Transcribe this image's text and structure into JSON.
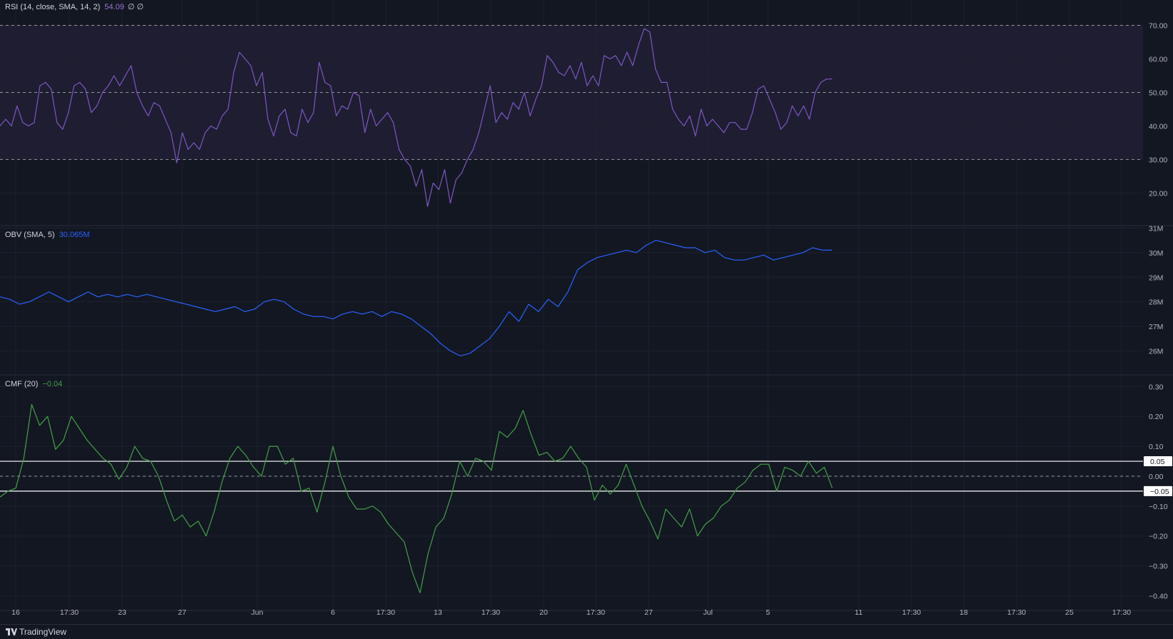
{
  "app": {
    "brand": "TradingView"
  },
  "colors": {
    "background": "#131722",
    "rsi": "#7e57c2",
    "rsi_band": "#7e57c2",
    "obv": "#2962ff",
    "cmf": "#43a047",
    "grid": "#1e222d",
    "text": "#b2b5be"
  },
  "x_axis": {
    "labels": [
      "16",
      "17:30",
      "23",
      "27",
      "Jun",
      "6",
      "17:30",
      "13",
      "17:30",
      "20",
      "17:30",
      "27",
      "Jul",
      "5",
      "11",
      "17:30",
      "18",
      "17:30",
      "25",
      "17:30"
    ]
  },
  "panes": {
    "rsi": {
      "title": "RSI (14, close, SMA, 14, 2)",
      "value": "54.09",
      "extra": "∅ ∅"
    },
    "obv": {
      "title": "OBV (SMA, 5)",
      "value": "30.065M"
    },
    "cmf": {
      "title": "CMF (20)",
      "value": "−0.04"
    }
  },
  "chart_data": [
    {
      "type": "line",
      "name": "RSI (14, close, SMA, 14, 2)",
      "ylim": [
        12,
        75
      ],
      "yticks": [
        "70.00",
        "60.00",
        "50.00",
        "40.00",
        "30.00",
        "20.00"
      ],
      "ytick_values": [
        70,
        60,
        50,
        40,
        30,
        20
      ],
      "levels": [
        70,
        50,
        30
      ],
      "band": [
        30,
        70
      ],
      "x_range": [
        0,
        185
      ],
      "series": [
        {
          "name": "RSI",
          "values": [
            40,
            42,
            40,
            46,
            41,
            40,
            41,
            52,
            53,
            51,
            41,
            39,
            44,
            52,
            53,
            51,
            44,
            46,
            50,
            52,
            55,
            52,
            55,
            58,
            50,
            46,
            43,
            47,
            46,
            42,
            38,
            29,
            38,
            33,
            35,
            33,
            38,
            40,
            39,
            43,
            45,
            56,
            62,
            60,
            58,
            52,
            56,
            42,
            37,
            43,
            45,
            38,
            37,
            45,
            41,
            44,
            59,
            53,
            52,
            43,
            46,
            45,
            50,
            49,
            38,
            45,
            40,
            42,
            44,
            41,
            33,
            30,
            28,
            22,
            27,
            16,
            23,
            21,
            27,
            17,
            24,
            26,
            30,
            33,
            38,
            45,
            52,
            41,
            44,
            42,
            47,
            45,
            50,
            43,
            48,
            52,
            61,
            59,
            56,
            55,
            58,
            54,
            59,
            52,
            55,
            52,
            61,
            60,
            61,
            58,
            62,
            58,
            64,
            69,
            68,
            57,
            53,
            53,
            45,
            42,
            40,
            43,
            37,
            45,
            40,
            42,
            40,
            38,
            41,
            41,
            39,
            39,
            44,
            51,
            52,
            48,
            44,
            39,
            41,
            46,
            43,
            46,
            42,
            50,
            53,
            54,
            54
          ]
        }
      ]
    },
    {
      "type": "line",
      "name": "OBV (SMA, 5)",
      "ylim": [
        25.2,
        31.1
      ],
      "yticks": [
        "31M",
        "30M",
        "29M",
        "28M",
        "27M",
        "26M"
      ],
      "ytick_values": [
        31,
        30,
        29,
        28,
        27,
        26
      ],
      "x_range": [
        0,
        185
      ],
      "series": [
        {
          "name": "OBV",
          "values": [
            28.2,
            28.1,
            27.9,
            28.0,
            28.2,
            28.4,
            28.2,
            28.0,
            28.2,
            28.4,
            28.2,
            28.3,
            28.2,
            28.3,
            28.2,
            28.3,
            28.2,
            28.1,
            28.0,
            27.9,
            27.8,
            27.7,
            27.6,
            27.7,
            27.8,
            27.6,
            27.7,
            28.0,
            28.1,
            28.0,
            27.7,
            27.5,
            27.4,
            27.4,
            27.3,
            27.5,
            27.6,
            27.5,
            27.6,
            27.4,
            27.6,
            27.5,
            27.3,
            27.0,
            26.7,
            26.3,
            26.0,
            25.8,
            25.9,
            26.2,
            26.5,
            27.0,
            27.6,
            27.2,
            27.9,
            27.6,
            28.1,
            27.8,
            28.4,
            29.3,
            29.6,
            29.8,
            29.9,
            30.0,
            30.1,
            30.0,
            30.3,
            30.5,
            30.4,
            30.3,
            30.2,
            30.2,
            30.0,
            30.1,
            29.8,
            29.7,
            29.7,
            29.8,
            29.9,
            29.7,
            29.8,
            29.9,
            30.0,
            30.2,
            30.1,
            30.1
          ]
        }
      ]
    },
    {
      "type": "line",
      "name": "CMF (20)",
      "ylim": [
        -0.43,
        0.32
      ],
      "yticks": [
        "0.30",
        "0.20",
        "0.10",
        "0.00",
        "−0.10",
        "−0.20",
        "−0.30",
        "−0.40"
      ],
      "ytick_values": [
        0.3,
        0.2,
        0.1,
        0.0,
        -0.1,
        -0.2,
        -0.3,
        -0.4
      ],
      "levels": [
        0.05,
        0.0,
        -0.05
      ],
      "level_tags": [
        "0.05",
        "−0.05"
      ],
      "x_range": [
        0,
        185
      ],
      "series": [
        {
          "name": "CMF",
          "values": [
            -0.07,
            -0.05,
            -0.04,
            0.06,
            0.24,
            0.17,
            0.2,
            0.09,
            0.12,
            0.2,
            0.16,
            0.12,
            0.09,
            0.06,
            0.04,
            -0.01,
            0.03,
            0.1,
            0.06,
            0.05,
            0.0,
            -0.08,
            -0.15,
            -0.13,
            -0.17,
            -0.15,
            -0.2,
            -0.12,
            -0.02,
            0.06,
            0.1,
            0.07,
            0.03,
            0.0,
            0.1,
            0.1,
            0.04,
            0.06,
            -0.05,
            -0.04,
            -0.12,
            -0.02,
            0.1,
            0.0,
            -0.07,
            -0.11,
            -0.11,
            -0.1,
            -0.12,
            -0.16,
            -0.19,
            -0.22,
            -0.32,
            -0.39,
            -0.26,
            -0.17,
            -0.14,
            -0.06,
            0.05,
            0.0,
            0.06,
            0.05,
            0.02,
            0.15,
            0.13,
            0.16,
            0.22,
            0.14,
            0.07,
            0.08,
            0.05,
            0.06,
            0.1,
            0.06,
            0.03,
            -0.08,
            -0.03,
            -0.06,
            -0.03,
            0.04,
            -0.03,
            -0.1,
            -0.15,
            -0.21,
            -0.11,
            -0.14,
            -0.17,
            -0.11,
            -0.2,
            -0.16,
            -0.14,
            -0.1,
            -0.08,
            -0.04,
            -0.02,
            0.02,
            0.04,
            0.04,
            -0.05,
            0.03,
            0.02,
            0.0,
            0.05,
            0.01,
            0.03,
            -0.04
          ]
        }
      ]
    }
  ]
}
